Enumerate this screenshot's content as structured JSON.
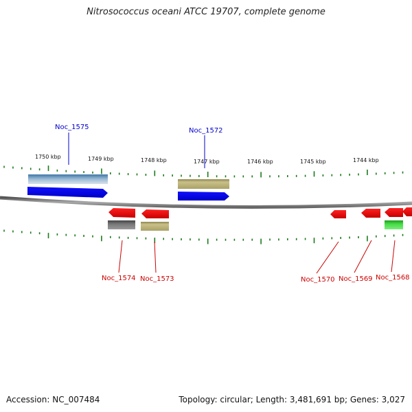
{
  "title": "Nitrosococcus oceani ATCC 19707, complete genome",
  "footer": {
    "accession": "Accession: NC_007484",
    "summary": "Topology: circular; Length: 3,481,691 bp; Genes: 3,027"
  },
  "ticks": [
    "1750 kbp",
    "1749 kbp",
    "1748 kbp",
    "1747 kbp",
    "1746 kbp",
    "1745 kbp",
    "1744 kbp"
  ],
  "colors": {
    "forward_label": "#0000cc",
    "reverse_label": "#cc0000",
    "cds": "#0000ee",
    "red_gene": "#ee0000",
    "olive": "#b5ad6e",
    "steel": "#5a8ab0",
    "gray": "#666666",
    "green": "#33cc33",
    "tick": "#1a7a1a",
    "backbone": "#777777"
  },
  "genes": {
    "forward": [
      "Noc_1575",
      "Noc_1572"
    ],
    "reverse": [
      "Noc_1574",
      "Noc_1573",
      "Noc_1570",
      "Noc_1569",
      "Noc_1568"
    ]
  }
}
